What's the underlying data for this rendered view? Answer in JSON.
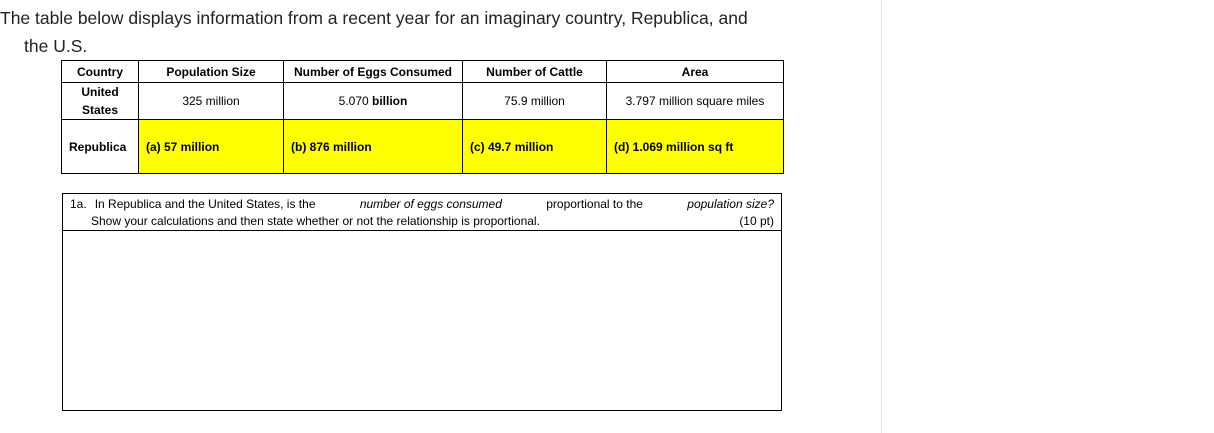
{
  "intro": {
    "line1": "The table below displays information from a recent year for an imaginary country, Republica, and",
    "line2": "the U.S."
  },
  "table": {
    "headers": [
      "Country",
      "Population Size",
      "Number of Eggs Consumed",
      "Number of Cattle",
      "Area"
    ],
    "us": {
      "country_line1": "United",
      "country_line2": "States",
      "population": "325 million",
      "eggs_num": "5.070",
      "eggs_unit": "billion",
      "cattle": "75.9 million",
      "area": "3.797 million square miles"
    },
    "republica": {
      "country": "Republica",
      "population": "(a) 57 million",
      "eggs": "(b) 876 million",
      "cattle": "(c) 49.7 million",
      "area": "(d) 1.069 million sq ft"
    },
    "highlight_color": "#ffff00"
  },
  "question": {
    "number": "1a.",
    "text_part1": "In Republica and the United States, is the",
    "text_em1": "number of eggs consumed",
    "text_part2": "proportional to the",
    "text_em2": "population size?",
    "line2": "Show your calculations and then state whether or not the relationship is proportional.",
    "points": "(10 pt)"
  }
}
